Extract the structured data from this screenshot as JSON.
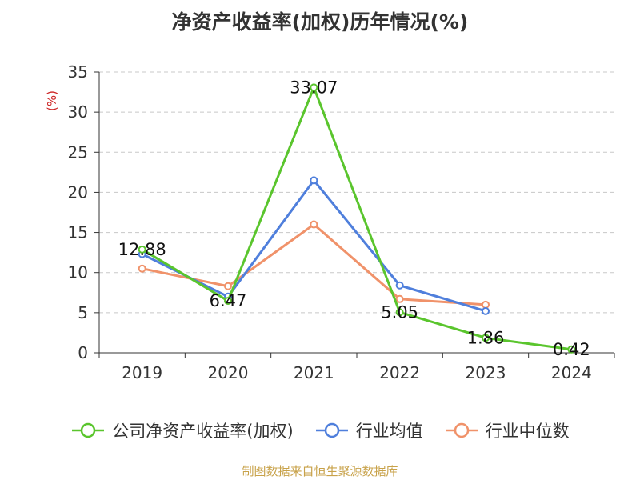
{
  "chart_data": {
    "type": "line",
    "title": "净资产收益率(加权)历年情况(%)",
    "ylabel": "(%)",
    "xlabel": "",
    "categories": [
      "2019",
      "2020",
      "2021",
      "2022",
      "2023",
      "2024"
    ],
    "ylim": [
      0,
      35
    ],
    "yticks": [
      0,
      5,
      10,
      15,
      20,
      25,
      30,
      35
    ],
    "grid": true,
    "legend_position": "bottom",
    "series": [
      {
        "name": "公司净资产收益率(加权)",
        "color": "#5ac52d",
        "values": [
          12.88,
          6.47,
          33.07,
          5.05,
          1.86,
          0.42
        ],
        "labels": [
          "12.88",
          "6.47",
          "33.07",
          "5.05",
          "1.86",
          "0.42"
        ]
      },
      {
        "name": "行业均值",
        "color": "#4f7fdc",
        "values": [
          12.3,
          7.0,
          21.5,
          8.4,
          5.2,
          null
        ]
      },
      {
        "name": "行业中位数",
        "color": "#f0926a",
        "values": [
          10.5,
          8.3,
          16.0,
          6.7,
          6.0,
          null
        ]
      }
    ]
  },
  "source": "制图数据来自恒生聚源数据库"
}
